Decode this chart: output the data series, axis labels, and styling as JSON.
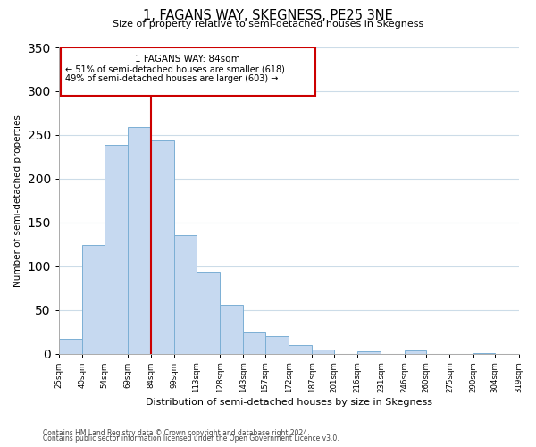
{
  "title": "1, FAGANS WAY, SKEGNESS, PE25 3NE",
  "subtitle": "Size of property relative to semi-detached houses in Skegness",
  "xlabel": "Distribution of semi-detached houses by size in Skegness",
  "ylabel": "Number of semi-detached properties",
  "bar_edges": [
    25,
    40,
    54,
    69,
    84,
    99,
    113,
    128,
    143,
    157,
    172,
    187,
    201,
    216,
    231,
    246,
    260,
    275,
    290,
    304,
    319
  ],
  "bar_heights": [
    17,
    124,
    239,
    259,
    244,
    135,
    94,
    56,
    25,
    20,
    10,
    5,
    0,
    3,
    0,
    4,
    0,
    0,
    1,
    0,
    1
  ],
  "tick_labels": [
    "25sqm",
    "40sqm",
    "54sqm",
    "69sqm",
    "84sqm",
    "99sqm",
    "113sqm",
    "128sqm",
    "143sqm",
    "157sqm",
    "172sqm",
    "187sqm",
    "201sqm",
    "216sqm",
    "231sqm",
    "246sqm",
    "260sqm",
    "275sqm",
    "290sqm",
    "304sqm",
    "319sqm"
  ],
  "bar_color": "#c6d9f0",
  "bar_edge_color": "#7bafd4",
  "property_line_x": 84,
  "property_line_color": "#cc0000",
  "annotation_title": "1 FAGANS WAY: 84sqm",
  "annotation_line1": "← 51% of semi-detached houses are smaller (618)",
  "annotation_line2": "49% of semi-detached houses are larger (603) →",
  "annotation_box_color": "#ffffff",
  "annotation_box_edge_color": "#cc0000",
  "ylim": [
    0,
    350
  ],
  "footer_line1": "Contains HM Land Registry data © Crown copyright and database right 2024.",
  "footer_line2": "Contains public sector information licensed under the Open Government Licence v3.0.",
  "background_color": "#ffffff",
  "grid_color": "#ccdce8"
}
